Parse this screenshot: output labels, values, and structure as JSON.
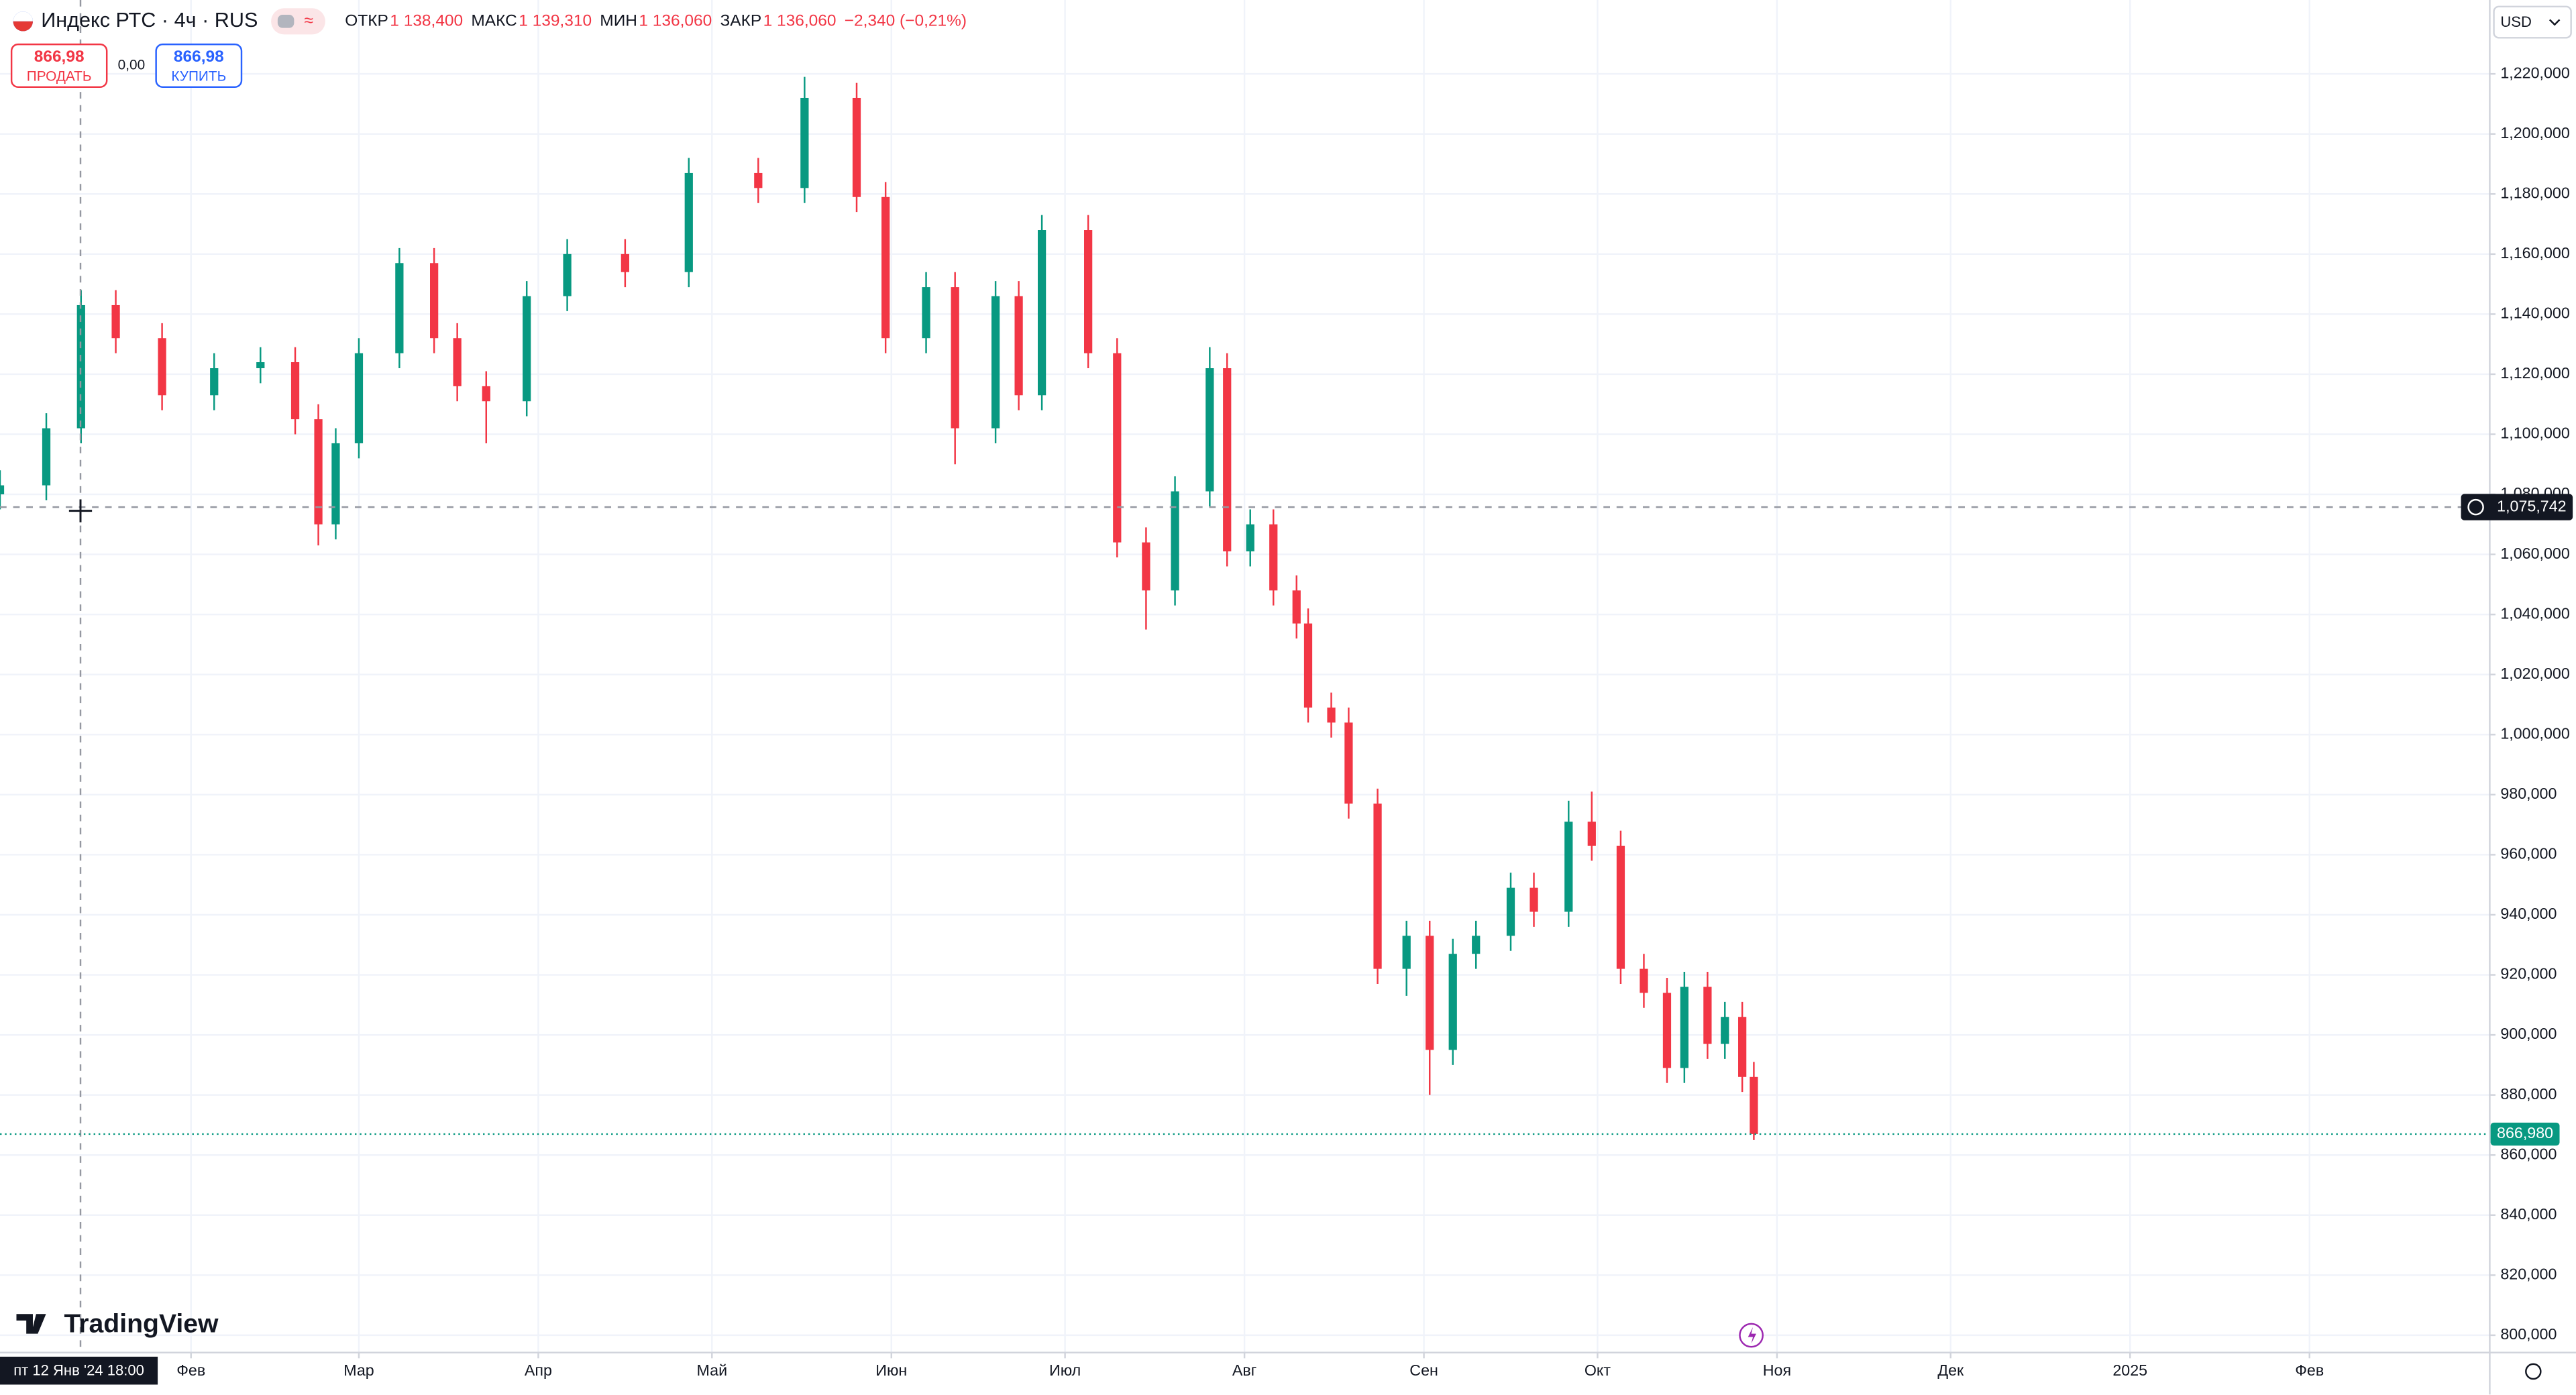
{
  "chart_data": {
    "type": "candlestick",
    "title": "Индекс РТС · 4ч · RUS",
    "legend_ohlc": [
      {
        "label": "ОТКР",
        "value": "1 138,400"
      },
      {
        "label": "МАКС",
        "value": "1 139,310"
      },
      {
        "label": "МИН",
        "value": "1 136,060"
      },
      {
        "label": "ЗАКР",
        "value": "1 136,060"
      }
    ],
    "change": "−2,340 (−0,21%)",
    "sell": {
      "price": "866,98",
      "label": "ПРОДАТЬ"
    },
    "spread": "0,00",
    "buy": {
      "price": "866,98",
      "label": "КУПИТЬ"
    },
    "currency": "USD",
    "logo": "TradingView",
    "crosshair_time": "пт 12 Янв '24 18:00",
    "crosshair_price": {
      "value": 1075742,
      "label": "1,075,742"
    },
    "last_price": {
      "value": 866980,
      "label": "866,980"
    },
    "up_color": "#089981",
    "down_color": "#f23645",
    "grid": true,
    "x": [
      -2,
      6,
      12,
      18,
      26,
      35,
      43,
      49,
      53,
      56,
      60,
      67,
      73,
      77,
      82,
      89,
      96,
      106,
      117,
      129,
      137,
      146,
      151,
      158,
      163,
      170,
      174,
      178,
      186,
      191,
      196,
      201,
      207,
      210,
      214,
      218,
      222,
      224,
      228,
      231,
      236,
      241,
      245,
      249,
      253,
      259,
      263,
      269,
      273,
      278,
      282,
      286,
      289,
      293,
      296,
      299,
      301
    ],
    "open": [
      1080000,
      1083000,
      1102000,
      1143000,
      1132000,
      1113000,
      1122000,
      1124000,
      1105000,
      1070000,
      1097000,
      1127000,
      1157000,
      1132000,
      1116000,
      1111000,
      1146000,
      1160000,
      1154000,
      1187000,
      1182000,
      1212000,
      1179000,
      1132000,
      1149000,
      1102000,
      1146000,
      1113000,
      1168000,
      1127000,
      1064000,
      1048000,
      1081000,
      1122000,
      1061000,
      1070000,
      1048000,
      1037000,
      1009000,
      1004000,
      977000,
      922000,
      933000,
      895000,
      927000,
      933000,
      949000,
      941000,
      971000,
      963000,
      922000,
      914000,
      889000,
      916000,
      897000,
      906000,
      886000
    ],
    "high": [
      1088000,
      1107000,
      1148000,
      1148000,
      1137000,
      1127000,
      1129000,
      1129000,
      1110000,
      1102000,
      1132000,
      1162000,
      1162000,
      1137000,
      1121000,
      1151000,
      1165000,
      1165000,
      1192000,
      1192000,
      1219000,
      1217000,
      1184000,
      1154000,
      1154000,
      1151000,
      1151000,
      1173000,
      1173000,
      1132000,
      1069000,
      1086000,
      1129000,
      1127000,
      1075000,
      1075000,
      1053000,
      1042000,
      1014000,
      1009000,
      982000,
      938000,
      938000,
      932000,
      938000,
      954000,
      954000,
      978000,
      981000,
      968000,
      927000,
      919000,
      921000,
      921000,
      911000,
      911000,
      891000
    ],
    "low": [
      1075000,
      1078000,
      1097000,
      1127000,
      1108000,
      1108000,
      1117000,
      1100000,
      1063000,
      1065000,
      1092000,
      1122000,
      1127000,
      1111000,
      1097000,
      1106000,
      1141000,
      1149000,
      1149000,
      1177000,
      1177000,
      1174000,
      1127000,
      1127000,
      1090000,
      1097000,
      1108000,
      1108000,
      1122000,
      1059000,
      1035000,
      1043000,
      1076000,
      1056000,
      1056000,
      1043000,
      1032000,
      1004000,
      999000,
      972000,
      917000,
      913000,
      880000,
      890000,
      922000,
      928000,
      936000,
      936000,
      958000,
      917000,
      909000,
      884000,
      884000,
      892000,
      892000,
      881000,
      865000
    ],
    "close": [
      1083000,
      1102000,
      1143000,
      1132000,
      1113000,
      1122000,
      1124000,
      1105000,
      1070000,
      1097000,
      1127000,
      1157000,
      1132000,
      1116000,
      1111000,
      1146000,
      1160000,
      1154000,
      1187000,
      1182000,
      1212000,
      1179000,
      1132000,
      1149000,
      1102000,
      1146000,
      1113000,
      1168000,
      1127000,
      1064000,
      1048000,
      1081000,
      1122000,
      1061000,
      1070000,
      1048000,
      1037000,
      1009000,
      1004000,
      977000,
      922000,
      933000,
      895000,
      927000,
      933000,
      949000,
      941000,
      971000,
      963000,
      922000,
      914000,
      889000,
      916000,
      897000,
      906000,
      886000,
      866980
    ],
    "xlim": [
      -2,
      428
    ],
    "xticks": [
      {
        "value": 31,
        "label": "Фев"
      },
      {
        "value": 60,
        "label": "Мар"
      },
      {
        "value": 91,
        "label": "Апр"
      },
      {
        "value": 121,
        "label": "Май"
      },
      {
        "value": 152,
        "label": "Июн"
      },
      {
        "value": 182,
        "label": "Июл"
      },
      {
        "value": 213,
        "label": "Авг"
      },
      {
        "value": 244,
        "label": "Сен"
      },
      {
        "value": 274,
        "label": "Окт"
      },
      {
        "value": 305,
        "label": "Ноя"
      },
      {
        "value": 335,
        "label": "Дек"
      },
      {
        "value": 366,
        "label": "2025"
      },
      {
        "value": 397,
        "label": "Фев"
      }
    ],
    "ylim": [
      794500,
      1244600
    ],
    "yticks": [
      {
        "value": 800000,
        "label": "800,000"
      },
      {
        "value": 820000,
        "label": "820,000"
      },
      {
        "value": 840000,
        "label": "840,000"
      },
      {
        "value": 860000,
        "label": "860,000"
      },
      {
        "value": 880000,
        "label": "880,000"
      },
      {
        "value": 900000,
        "label": "900,000"
      },
      {
        "value": 920000,
        "label": "920,000"
      },
      {
        "value": 940000,
        "label": "940,000"
      },
      {
        "value": 960000,
        "label": "960,000"
      },
      {
        "value": 980000,
        "label": "980,000"
      },
      {
        "value": 1000000,
        "label": "1,000,000"
      },
      {
        "value": 1020000,
        "label": "1,020,000"
      },
      {
        "value": 1040000,
        "label": "1,040,000"
      },
      {
        "value": 1060000,
        "label": "1,060,000"
      },
      {
        "value": 1080000,
        "label": "1,080,000"
      },
      {
        "value": 1100000,
        "label": "1,100,000"
      },
      {
        "value": 1120000,
        "label": "1,120,000"
      },
      {
        "value": 1140000,
        "label": "1,140,000"
      },
      {
        "value": 1160000,
        "label": "1,160,000"
      },
      {
        "value": 1180000,
        "label": "1,180,000"
      },
      {
        "value": 1200000,
        "label": "1,200,000"
      },
      {
        "value": 1220000,
        "label": "1,220,000"
      }
    ]
  }
}
